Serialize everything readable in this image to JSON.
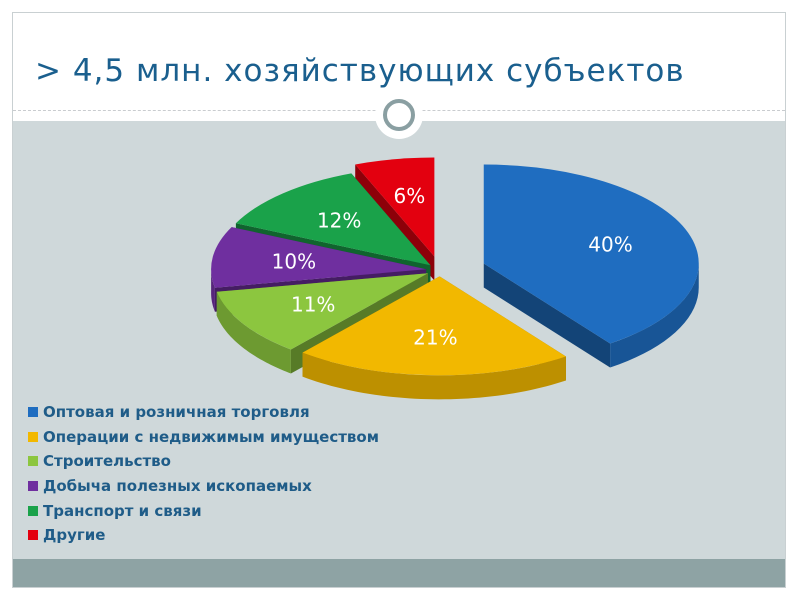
{
  "slide": {
    "title": "> 4,5 млн. хозяйствующих субъектов"
  },
  "chart_data": {
    "type": "pie",
    "title": "",
    "categories": [
      "Оптовая и розничная торговля",
      "Операции с недвижимым имуществом",
      "Строительство",
      "Добыча полезных ископаемых",
      "Транспорт и связи",
      "Другие"
    ],
    "values": [
      40,
      21,
      11,
      10,
      12,
      6
    ],
    "labels": [
      "40%",
      "21%",
      "11%",
      "10%",
      "12%",
      "6%"
    ],
    "colors": [
      "#1f6dc0",
      "#f2b800",
      "#8cc63f",
      "#6f2f9f",
      "#1aa24a",
      "#e3000f"
    ],
    "legend_position": "bottom-left",
    "style": "exploded 3D pie"
  }
}
